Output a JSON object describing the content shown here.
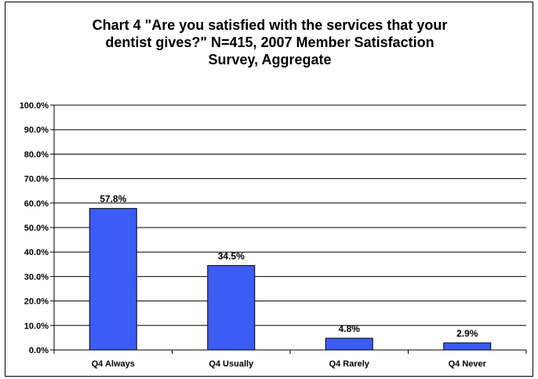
{
  "title_lines": [
    "Chart 4 \"Are you satisfied with the services that your",
    "dentist gives?\" N=415, 2007 Member Satisfaction",
    "Survey, Aggregate"
  ],
  "colors": {
    "bar": "#3b5cf5",
    "grid": "#000000",
    "axis": "#000000"
  },
  "chart_data": {
    "type": "bar",
    "title": "Chart 4 \"Are you satisfied with the services that your dentist gives?\" N=415, 2007 Member Satisfaction Survey, Aggregate",
    "categories": [
      "Q4 Always",
      "Q4 Usually",
      "Q4 Rarely",
      "Q4 Never"
    ],
    "values": [
      57.8,
      34.5,
      4.8,
      2.9
    ],
    "value_labels": [
      "57.8%",
      "34.5%",
      "4.8%",
      "2.9%"
    ],
    "xlabel": "",
    "ylabel": "",
    "ylim": [
      0,
      100
    ],
    "yticks": [
      0,
      10,
      20,
      30,
      40,
      50,
      60,
      70,
      80,
      90,
      100
    ],
    "ytick_labels": [
      "0.0%",
      "10.0%",
      "20.0%",
      "30.0%",
      "40.0%",
      "50.0%",
      "60.0%",
      "70.0%",
      "80.0%",
      "90.0%",
      "100.0%"
    ],
    "grid": true,
    "legend": "none"
  }
}
